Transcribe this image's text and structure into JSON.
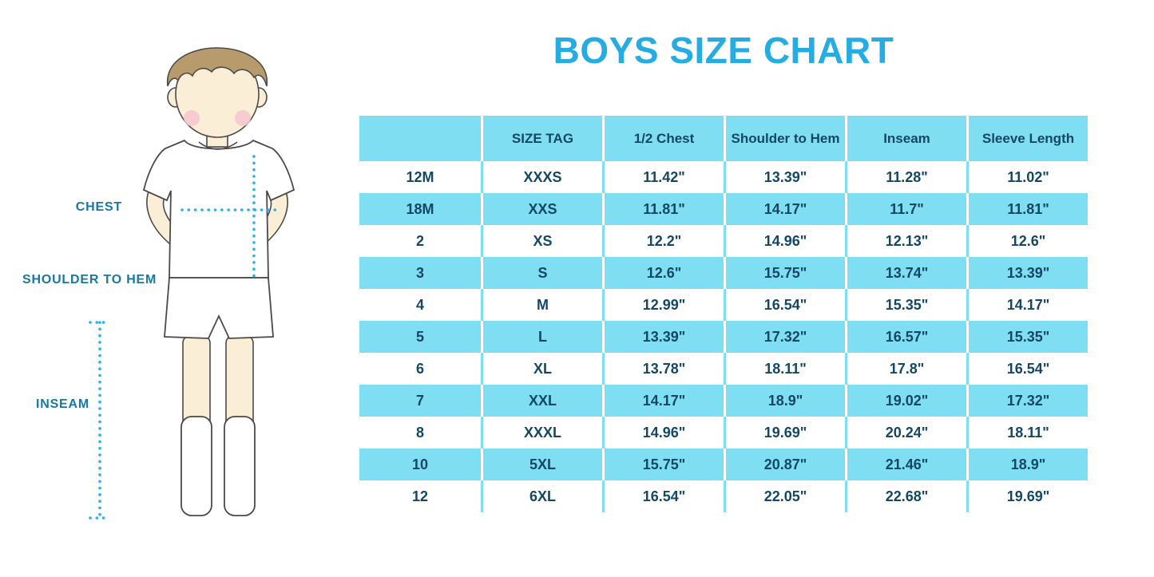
{
  "title": "BOYS SIZE CHART",
  "figure_labels": {
    "chest": "CHEST",
    "shoulder_to_hem": "SHOULDER TO HEM",
    "inseam": "INSEAM"
  },
  "chart_data": {
    "type": "table",
    "title": "BOYS SIZE CHART",
    "columns": [
      "",
      "SIZE TAG",
      "1/2 Chest",
      "Shoulder to Hem",
      "Inseam",
      "Sleeve Length"
    ],
    "rows": [
      [
        "12M",
        "XXXS",
        "11.42\"",
        "13.39\"",
        "11.28\"",
        "11.02\""
      ],
      [
        "18M",
        "XXS",
        "11.81\"",
        "14.17\"",
        "11.7\"",
        "11.81\""
      ],
      [
        "2",
        "XS",
        "12.2\"",
        "14.96\"",
        "12.13\"",
        "12.6\""
      ],
      [
        "3",
        "S",
        "12.6\"",
        "15.75\"",
        "13.74\"",
        "13.39\""
      ],
      [
        "4",
        "M",
        "12.99\"",
        "16.54\"",
        "15.35\"",
        "14.17\""
      ],
      [
        "5",
        "L",
        "13.39\"",
        "17.32\"",
        "16.57\"",
        "15.35\""
      ],
      [
        "6",
        "XL",
        "13.78\"",
        "18.11\"",
        "17.8\"",
        "16.54\""
      ],
      [
        "7",
        "XXL",
        "14.17\"",
        "18.9\"",
        "19.02\"",
        "17.32\""
      ],
      [
        "8",
        "XXXL",
        "14.96\"",
        "19.69\"",
        "20.24\"",
        "18.11\""
      ],
      [
        "10",
        "5XL",
        "15.75\"",
        "20.87\"",
        "21.46\"",
        "18.9\""
      ],
      [
        "12",
        "6XL",
        "16.54\"",
        "22.05\"",
        "22.68\"",
        "19.69\""
      ]
    ]
  },
  "colors": {
    "accent": "#25ACE3",
    "row_fill": "#7FDEF2",
    "text_dark": "#134765",
    "label": "#1878A3",
    "dotted": "#2BB2E6",
    "skin": "#FBEED6",
    "hair": "#B79B6C",
    "cheek": "#F5C6CF",
    "outline": "#4A4A4A"
  }
}
